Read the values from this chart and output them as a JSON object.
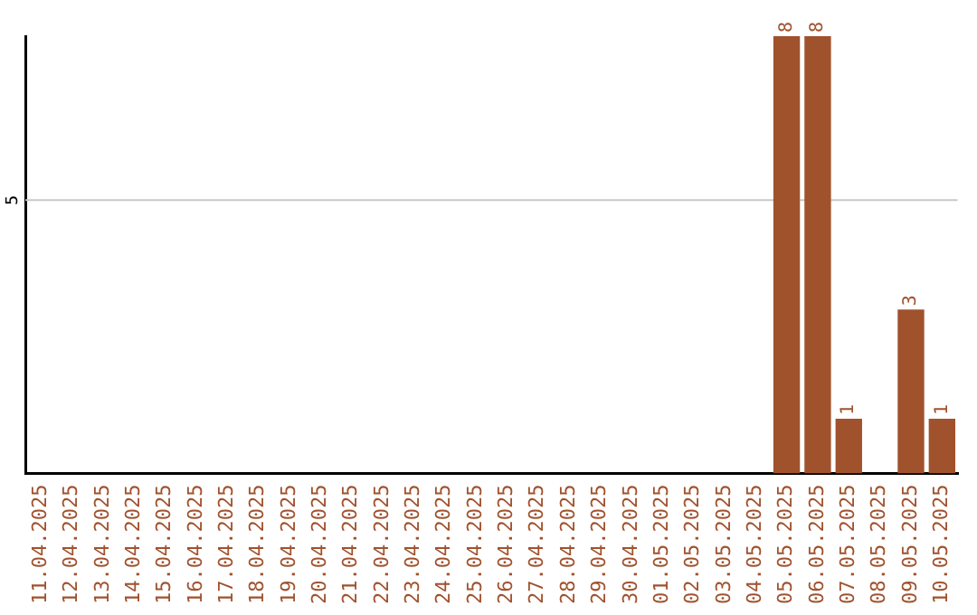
{
  "chart_data": {
    "type": "bar",
    "categories": [
      "11.04.2025",
      "12.04.2025",
      "13.04.2025",
      "14.04.2025",
      "15.04.2025",
      "16.04.2025",
      "17.04.2025",
      "18.04.2025",
      "19.04.2025",
      "20.04.2025",
      "21.04.2025",
      "22.04.2025",
      "23.04.2025",
      "24.04.2025",
      "25.04.2025",
      "26.04.2025",
      "27.04.2025",
      "28.04.2025",
      "29.04.2025",
      "30.04.2025",
      "01.05.2025",
      "02.05.2025",
      "03.05.2025",
      "04.05.2025",
      "05.05.2025",
      "06.05.2025",
      "07.05.2025",
      "08.05.2025",
      "09.05.2025",
      "10.05.2025"
    ],
    "values": [
      null,
      null,
      null,
      null,
      null,
      null,
      null,
      null,
      null,
      null,
      null,
      null,
      null,
      null,
      null,
      null,
      null,
      null,
      null,
      null,
      null,
      null,
      null,
      null,
      8,
      8,
      1,
      null,
      3,
      1
    ],
    "value_labels": [
      null,
      null,
      null,
      null,
      null,
      null,
      null,
      null,
      null,
      null,
      null,
      null,
      null,
      null,
      null,
      null,
      null,
      null,
      null,
      null,
      null,
      null,
      null,
      null,
      "8",
      "8",
      "1",
      null,
      "3",
      "1"
    ],
    "color": "#a0522d",
    "ref_lines": [
      {
        "axis": "y",
        "value": 5,
        "label": "5",
        "color": "#c8c8c8"
      }
    ]
  }
}
